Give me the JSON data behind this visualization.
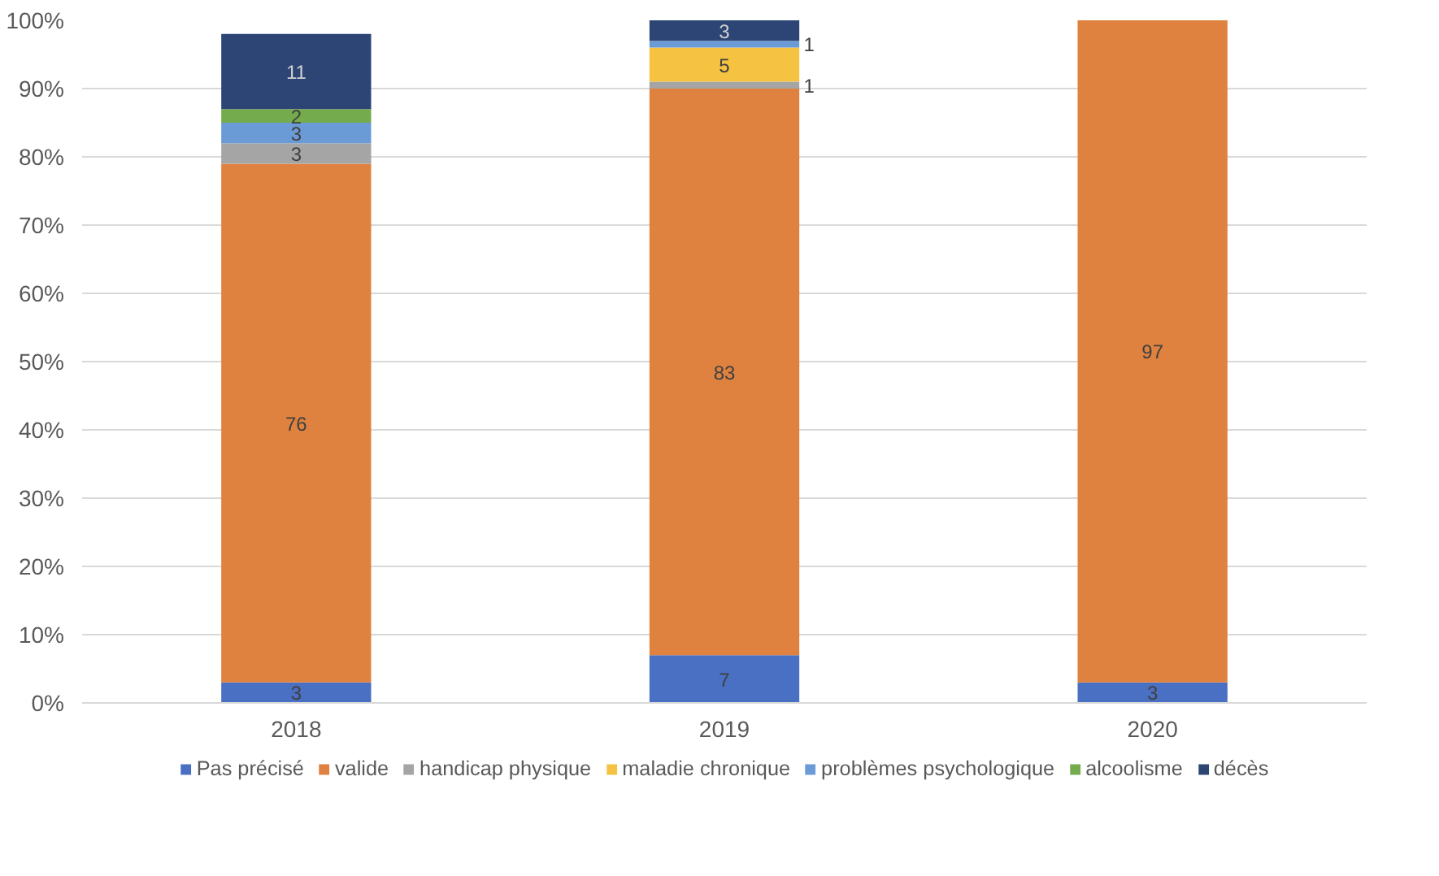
{
  "chart_data": {
    "type": "bar",
    "stacked": true,
    "categories": [
      "2018",
      "2019",
      "2020"
    ],
    "series": [
      {
        "name": "Pas précisé",
        "color": "#4a70c4",
        "values": [
          3,
          7,
          3
        ]
      },
      {
        "name": "valide",
        "color": "#e0823f",
        "values": [
          76,
          83,
          97
        ]
      },
      {
        "name": "handicap physique",
        "color": "#a5a5a5",
        "values": [
          3,
          1,
          null
        ]
      },
      {
        "name": "maladie chronique",
        "color": "#f5c242",
        "values": [
          null,
          5,
          null
        ]
      },
      {
        "name": "problèmes psychologique",
        "color": "#6a9bd6",
        "values": [
          3,
          1,
          null
        ]
      },
      {
        "name": "alcoolisme",
        "color": "#74ab4c",
        "values": [
          2,
          null,
          null
        ]
      },
      {
        "name": "décès",
        "color": "#2d4575",
        "values": [
          11,
          3,
          null
        ]
      }
    ],
    "data_labels": true,
    "ylim": [
      0,
      100
    ],
    "yticks": [
      {
        "value": 0,
        "label": "0%"
      },
      {
        "value": 10,
        "label": "10%"
      },
      {
        "value": 20,
        "label": "20%"
      },
      {
        "value": 30,
        "label": "30%"
      },
      {
        "value": 40,
        "label": "40%"
      },
      {
        "value": 50,
        "label": "50%"
      },
      {
        "value": 60,
        "label": "60%"
      },
      {
        "value": 70,
        "label": "70%"
      },
      {
        "value": 80,
        "label": "80%"
      },
      {
        "value": 90,
        "label": "90%"
      },
      {
        "value": 100,
        "label": "100%"
      }
    ],
    "grid": "y",
    "legend": "bottom"
  }
}
